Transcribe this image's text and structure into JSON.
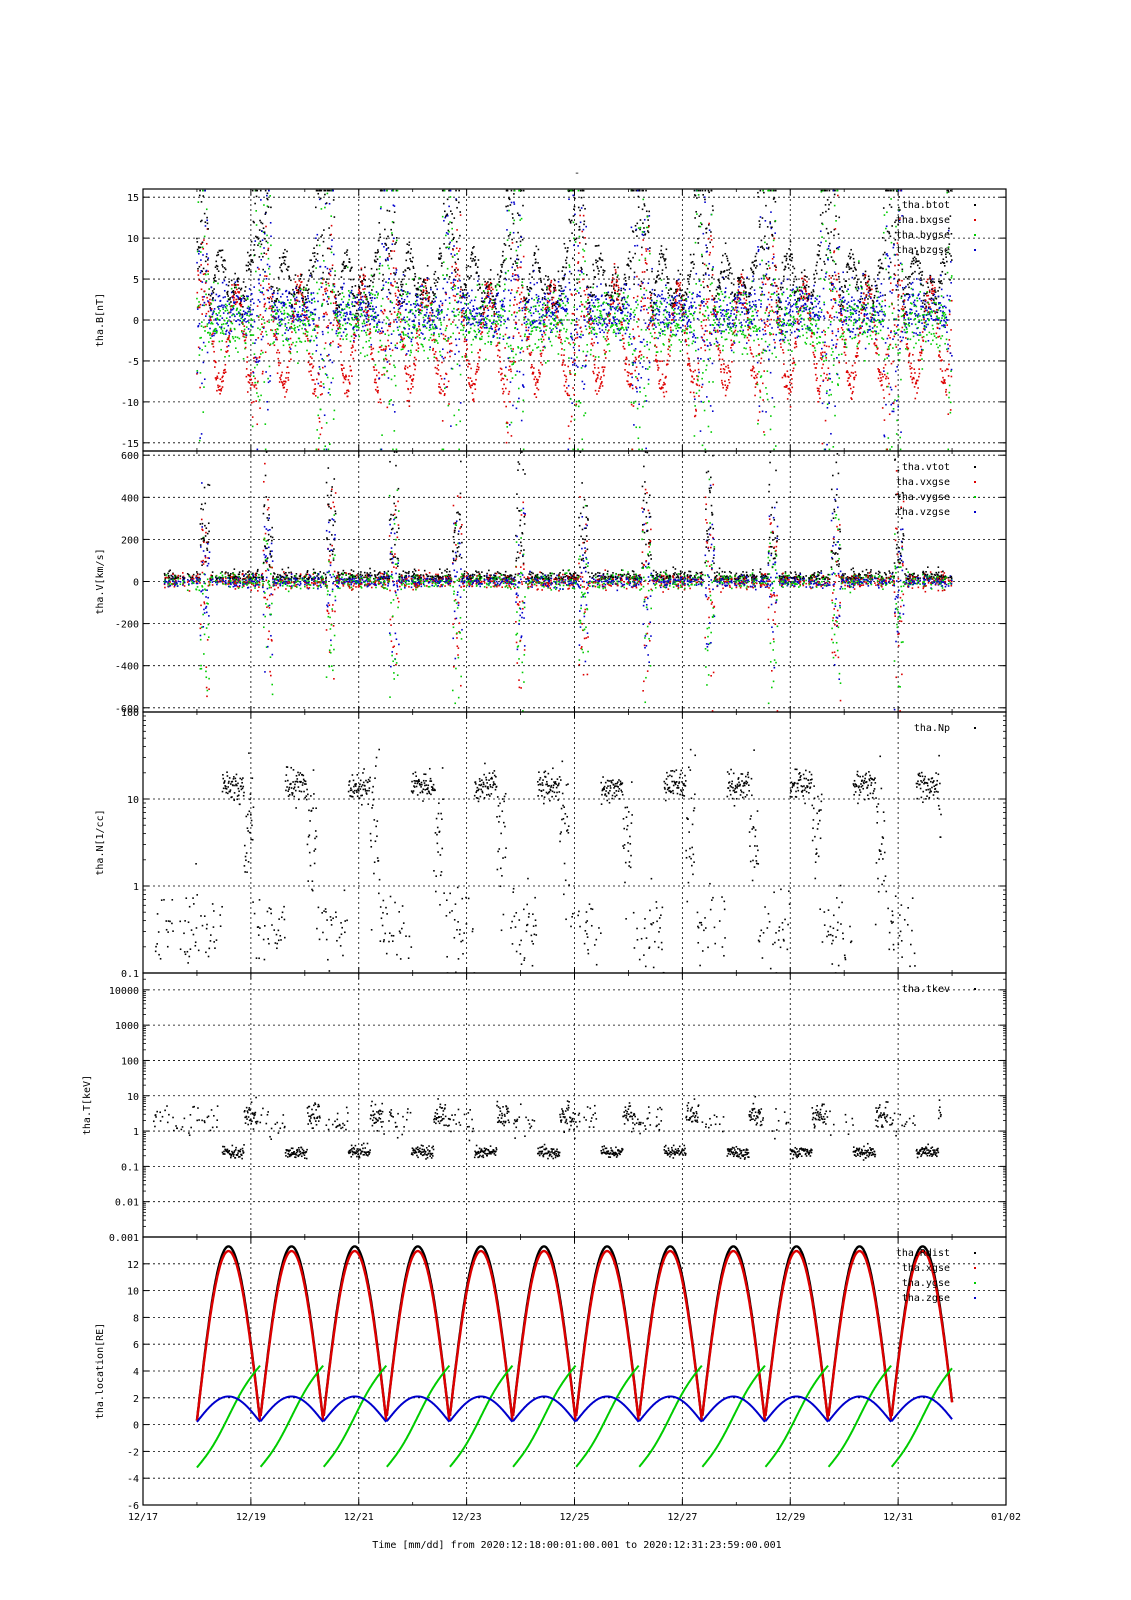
{
  "title": "-",
  "xlabel": "Time [mm/dd]  from 2020:12:18:00:01:00.001  to  2020:12:31:23:59:00.001",
  "x_ticks": [
    "12/17",
    "12/19",
    "12/21",
    "12/23",
    "12/25",
    "12/27",
    "12/29",
    "12/31",
    "01/02"
  ],
  "colors": {
    "black": "#000000",
    "red": "#dd0000",
    "green": "#00cc00",
    "blue": "#0000cc"
  },
  "chart_data": [
    {
      "type": "scatter",
      "ylabel": "tha.B[nT]",
      "ylim": [
        -16,
        16
      ],
      "yscale": "linear",
      "y_ticks": [
        15,
        10,
        5,
        0,
        -5,
        -10,
        -15
      ],
      "grid": true,
      "legend_position": "top-right",
      "series": [
        {
          "name": "tha.btot",
          "color": "#000000"
        },
        {
          "name": "tha.bxgse",
          "color": "#dd0000"
        },
        {
          "name": "tha.bygse",
          "color": "#00cc00"
        },
        {
          "name": "tha.bzgse",
          "color": "#0000cc"
        }
      ]
    },
    {
      "type": "scatter",
      "ylabel": "tha.V[km/s]",
      "ylim": [
        -620,
        620
      ],
      "yscale": "linear",
      "y_ticks": [
        600,
        400,
        200,
        0,
        -200,
        -400,
        -600
      ],
      "grid": true,
      "legend_position": "top-right",
      "series": [
        {
          "name": "tha.vtot",
          "color": "#000000"
        },
        {
          "name": "tha.vxgse",
          "color": "#dd0000"
        },
        {
          "name": "tha.vygse",
          "color": "#00cc00"
        },
        {
          "name": "tha.vzgse",
          "color": "#0000cc"
        }
      ]
    },
    {
      "type": "scatter",
      "ylabel": "tha.N[1/cc]",
      "ylim": [
        0.1,
        100
      ],
      "yscale": "log",
      "y_ticks": [
        100,
        10,
        1,
        0.1
      ],
      "y_tick_labels": [
        "100",
        "10",
        "1",
        "0.1"
      ],
      "grid": true,
      "legend_position": "top-right",
      "series": [
        {
          "name": "tha.Np",
          "color": "#000000"
        }
      ]
    },
    {
      "type": "scatter",
      "ylabel": "tha.T[keV]",
      "ylim": [
        0.001,
        30000
      ],
      "yscale": "log",
      "y_ticks": [
        10000,
        1000,
        100,
        10,
        1,
        0.1,
        0.01,
        0.001
      ],
      "y_tick_labels": [
        "10000",
        "1000",
        "100",
        "10",
        "1",
        "0.1",
        "0.01",
        "0.001"
      ],
      "grid": true,
      "legend_position": "top-right",
      "series": [
        {
          "name": "tha.tkev",
          "color": "#000000"
        }
      ]
    },
    {
      "type": "line",
      "ylabel": "tha.location[RE]",
      "ylim": [
        -6,
        14
      ],
      "yscale": "linear",
      "y_ticks": [
        12,
        10,
        8,
        6,
        4,
        2,
        0,
        -2,
        -4,
        -6
      ],
      "grid": true,
      "legend_position": "top-right",
      "orbit_period_days": 1.17,
      "apogee_Rdist": 13.3,
      "series": [
        {
          "name": "tha.Rdist",
          "color": "#000000"
        },
        {
          "name": "tha.xgse",
          "color": "#dd0000"
        },
        {
          "name": "tha.ygse",
          "color": "#00cc00"
        },
        {
          "name": "tha.zgse",
          "color": "#0000cc"
        }
      ]
    }
  ]
}
